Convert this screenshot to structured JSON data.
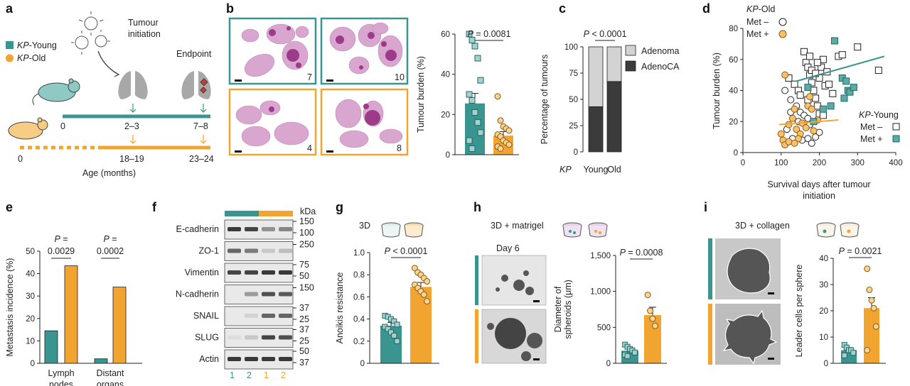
{
  "colors": {
    "young": "#3a9590",
    "old": "#f2a431",
    "dark": "#3b3b3b",
    "light": "#d3d3d3",
    "tissue": "#c96fb6"
  },
  "panel_labels": [
    "a",
    "b",
    "c",
    "d",
    "e",
    "f",
    "g",
    "h",
    "i"
  ],
  "panel_a": {
    "legend": [
      {
        "prefix": "KP",
        "suffix": "-Young"
      },
      {
        "prefix": "KP",
        "suffix": "-Old"
      }
    ],
    "tumour_initiation": [
      "Tumour",
      "initiation"
    ],
    "endpoint": "Endpoint",
    "young_ticks": [
      "0",
      "2–3",
      "7–8"
    ],
    "old_ticks": [
      "0",
      "18–19",
      "23–24"
    ],
    "axis_label": "Age (months)"
  },
  "panel_b": {
    "section_numbers": [
      "7",
      "10",
      "4",
      "8"
    ]
  },
  "chart_data": [
    {
      "panel": "b",
      "type": "bar",
      "title": "",
      "ylabel": "Tumour burden (%)",
      "ylim": [
        0,
        60
      ],
      "yticks": [
        "0",
        "20",
        "40",
        "60"
      ],
      "pvalue": "P = 0.0081",
      "categories": [
        "KP-Young",
        "KP-Old"
      ],
      "values": [
        25.5,
        9.5
      ],
      "errors": [
        5,
        2
      ],
      "points": [
        [
          60,
          57,
          54,
          48,
          37,
          30,
          27,
          21,
          16,
          11,
          7,
          3
        ],
        [
          29,
          17,
          14,
          13,
          12,
          10,
          9,
          7,
          6,
          5,
          4,
          3
        ]
      ]
    },
    {
      "panel": "c",
      "type": "bar",
      "stacked": true,
      "ylabel": "Percentage of tumours",
      "ylim": [
        0,
        100
      ],
      "yticks": [
        "0",
        "25",
        "50",
        "75",
        "100"
      ],
      "pvalue": "P < 0.0001",
      "xprefix": "KP",
      "categories": [
        "Young",
        "Old"
      ],
      "series": [
        {
          "name": "AdenoCA",
          "values": [
            43,
            67
          ]
        },
        {
          "name": "Adenoma",
          "values": [
            57,
            33
          ]
        }
      ],
      "legend": [
        "Adenoma",
        "AdenoCA"
      ]
    },
    {
      "panel": "d",
      "type": "scatter",
      "xlabel": [
        "Survival days after tumour",
        "initiation"
      ],
      "ylabel": "Tumour burden (%)",
      "xlim": [
        0,
        400
      ],
      "ylim": [
        0,
        80
      ],
      "xticks": [
        "0",
        "100",
        "200",
        "300",
        "400"
      ],
      "yticks": [
        "0",
        "20",
        "40",
        "60",
        "80"
      ],
      "legend_old": {
        "title_prefix": "KP",
        "title_suffix": "-Old",
        "items": [
          "Met –",
          "Met +"
        ]
      },
      "legend_young": {
        "title_prefix": "KP",
        "title_suffix": "-Young",
        "items": [
          "Met –",
          "Met +"
        ]
      },
      "young_met_neg": [
        [
          160,
          65
        ],
        [
          165,
          58
        ],
        [
          170,
          55
        ],
        [
          175,
          50
        ],
        [
          180,
          45
        ],
        [
          185,
          40
        ],
        [
          190,
          35
        ],
        [
          195,
          30
        ],
        [
          200,
          25
        ],
        [
          210,
          24
        ],
        [
          170,
          34
        ],
        [
          200,
          48
        ],
        [
          205,
          55
        ],
        [
          215,
          43
        ],
        [
          250,
          62
        ],
        [
          260,
          63
        ],
        [
          300,
          68
        ],
        [
          355,
          53
        ],
        [
          210,
          60
        ],
        [
          225,
          44
        ],
        [
          180,
          53
        ],
        [
          120,
          48
        ],
        [
          135,
          44
        ],
        [
          145,
          40
        ],
        [
          190,
          51
        ],
        [
          220,
          52
        ],
        [
          150,
          37
        ],
        [
          235,
          38
        ],
        [
          195,
          58
        ],
        [
          175,
          62
        ]
      ],
      "young_met_pos": [
        [
          240,
          72
        ],
        [
          170,
          42
        ],
        [
          260,
          48
        ],
        [
          270,
          46
        ],
        [
          275,
          40
        ],
        [
          280,
          39
        ],
        [
          265,
          35
        ],
        [
          230,
          30
        ],
        [
          290,
          42
        ],
        [
          210,
          28
        ],
        [
          185,
          20
        ]
      ],
      "old_met_neg": [
        [
          110,
          40
        ],
        [
          125,
          34
        ],
        [
          140,
          30
        ],
        [
          150,
          26
        ],
        [
          160,
          24
        ],
        [
          170,
          22
        ],
        [
          175,
          18
        ],
        [
          115,
          15
        ],
        [
          130,
          9
        ],
        [
          155,
          8
        ],
        [
          170,
          9
        ],
        [
          180,
          6
        ],
        [
          190,
          10
        ],
        [
          200,
          13
        ],
        [
          145,
          20
        ],
        [
          125,
          26
        ]
      ],
      "old_met_pos": [
        [
          100,
          12
        ],
        [
          105,
          8
        ],
        [
          110,
          5
        ],
        [
          120,
          18
        ],
        [
          130,
          22
        ],
        [
          135,
          28
        ],
        [
          140,
          15
        ],
        [
          150,
          12
        ],
        [
          155,
          19
        ],
        [
          165,
          16
        ],
        [
          170,
          30
        ],
        [
          180,
          28
        ],
        [
          185,
          14
        ],
        [
          145,
          9
        ],
        [
          120,
          7
        ],
        [
          135,
          6
        ],
        [
          175,
          36
        ],
        [
          195,
          21
        ],
        [
          110,
          50
        ]
      ],
      "fit_young": [
        [
          140,
          46
        ],
        [
          370,
          62
        ]
      ],
      "fit_old": [
        [
          95,
          18
        ],
        [
          250,
          21
        ]
      ]
    },
    {
      "panel": "e",
      "type": "bar",
      "ylabel": "Metastasis incidence (%)",
      "ylim": [
        0,
        50
      ],
      "yticks": [
        "0",
        "10",
        "20",
        "30",
        "40",
        "50"
      ],
      "categories": [
        [
          "Lymph",
          "nodes"
        ],
        [
          "Distant",
          "organs"
        ]
      ],
      "series": [
        {
          "name": "KP-Young",
          "values": [
            14.5,
            2
          ]
        },
        {
          "name": "KP-Old",
          "values": [
            43.5,
            34
          ]
        }
      ],
      "pvalues": [
        [
          "P =",
          "0.0029"
        ],
        [
          "P =",
          "0.0002"
        ]
      ]
    },
    {
      "panel": "g",
      "type": "bar",
      "title": "3D",
      "ylabel": "Anoikis resistance",
      "ylim": [
        0,
        1.0
      ],
      "yticks": [
        "0",
        "0.2",
        "0.4",
        "0.6",
        "0.8",
        "1.0"
      ],
      "pvalue": "P < 0.0001",
      "categories": [
        "KP-Young",
        "KP-Old"
      ],
      "values": [
        0.34,
        0.69
      ],
      "errors": [
        0.03,
        0.04
      ],
      "points": [
        [
          0.43,
          0.42,
          0.4,
          0.38,
          0.35,
          0.33,
          0.31,
          0.28,
          0.25,
          0.2
        ],
        [
          0.86,
          0.82,
          0.8,
          0.77,
          0.74,
          0.71,
          0.68,
          0.65,
          0.62,
          0.56
        ]
      ]
    },
    {
      "panel": "h",
      "type": "bar",
      "title": "3D + matrigel",
      "ylabel": [
        "Diameter of",
        "spheroids (μm)"
      ],
      "ylim": [
        0,
        1500
      ],
      "yticks": [
        "0",
        "500",
        "1,000",
        "1,500"
      ],
      "pvalue": "P = 0.0008",
      "categories": [
        "KP-Young",
        "KP-Old"
      ],
      "values": [
        175,
        670
      ],
      "errors": [
        40,
        110
      ],
      "points": [
        [
          260,
          230,
          200,
          180,
          150,
          120,
          100
        ],
        [
          950,
          730,
          620,
          520
        ]
      ]
    },
    {
      "panel": "i",
      "type": "bar",
      "title": "3D + collagen",
      "ylabel": "Leader cells per sphere",
      "ylim": [
        0,
        40
      ],
      "yticks": [
        "0",
        "10",
        "20",
        "30",
        "40"
      ],
      "pvalue": "P = 0.0021",
      "categories": [
        "KP-Young",
        "KP-Old"
      ],
      "values": [
        5,
        21
      ],
      "errors": [
        1,
        4
      ],
      "points": [
        [
          7,
          6,
          5,
          5,
          4,
          3
        ],
        [
          36,
          28,
          24,
          21,
          14,
          5
        ]
      ]
    }
  ],
  "panel_f": {
    "unit": "kDa",
    "rows": [
      {
        "label": "E-cadherin",
        "markers": [
          "150",
          "100"
        ]
      },
      {
        "label": "ZO-1",
        "markers": [
          "250"
        ]
      },
      {
        "label": "Vimentin",
        "markers": [
          "75",
          "50"
        ]
      },
      {
        "label": "N-cadherin",
        "markers": [
          "150"
        ]
      },
      {
        "label": "SNAIL",
        "markers": [
          "37",
          "25"
        ]
      },
      {
        "label": "SLUG",
        "markers": [
          "37",
          "25"
        ]
      },
      {
        "label": "Actin",
        "markers": [
          "50",
          "37"
        ]
      }
    ],
    "lanes": [
      "1",
      "2",
      "1",
      "2"
    ]
  },
  "panel_h": {
    "day_label": "Day 6"
  }
}
